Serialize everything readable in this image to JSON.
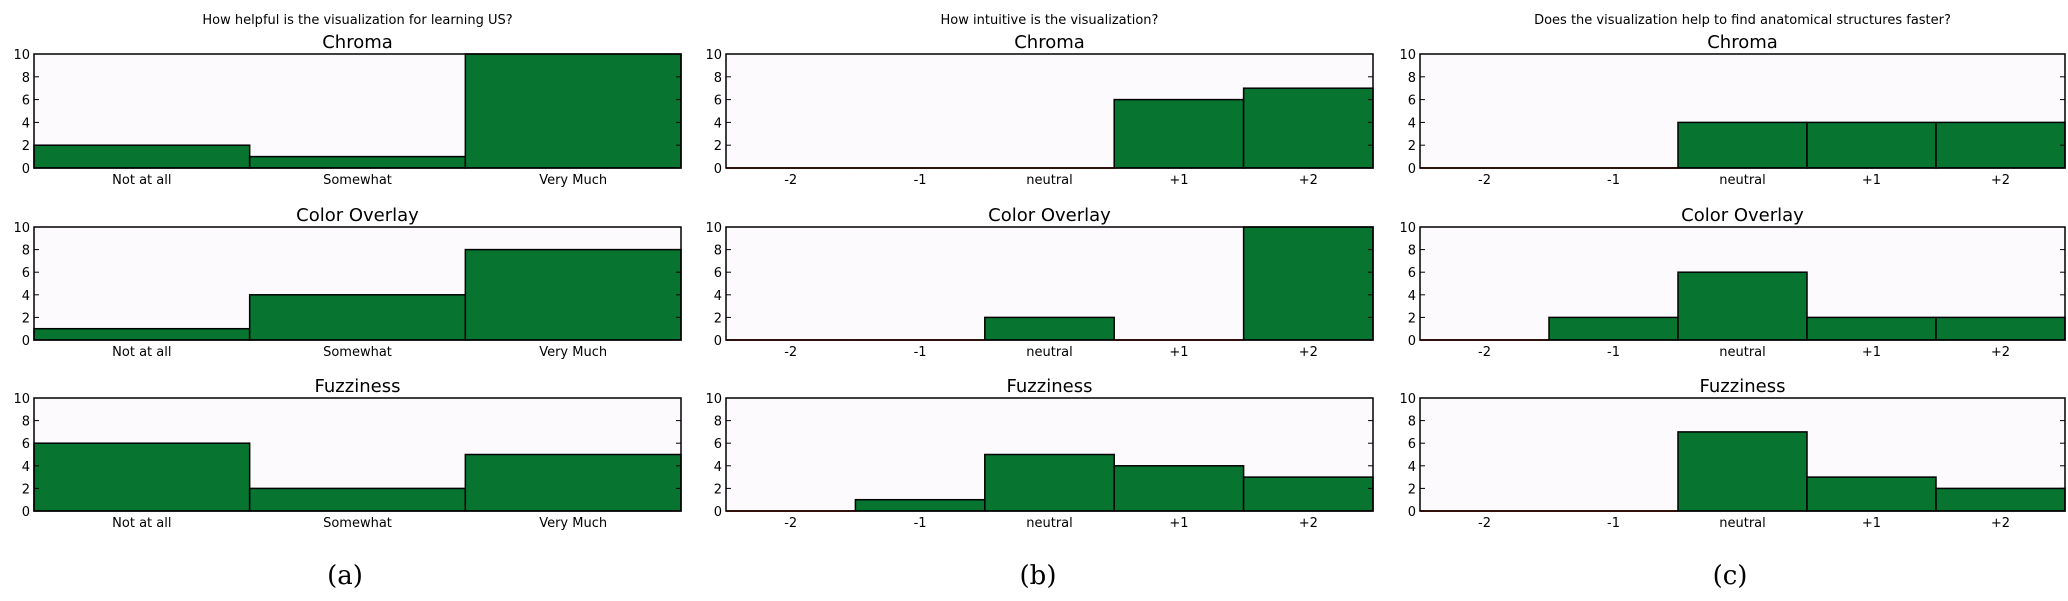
{
  "figure": {
    "captions": [
      "(a)",
      "(b)",
      "(c)"
    ],
    "colors": {
      "bar": "#077530",
      "plot_background": "#fdfafd",
      "edge": "#000000"
    }
  },
  "chart_data": [
    {
      "type": "bar",
      "panel_title": "How helpful is the visualization for learning US?",
      "title": "Chroma",
      "categories": [
        "Not at all",
        "Somewhat",
        "Very Much"
      ],
      "values": [
        2,
        1,
        10
      ],
      "ylim": [
        0,
        10
      ],
      "yticks": [
        "0",
        "2",
        "4",
        "6",
        "8",
        "10"
      ]
    },
    {
      "type": "bar",
      "panel_title": "",
      "title": "Color Overlay",
      "categories": [
        "Not at all",
        "Somewhat",
        "Very Much"
      ],
      "values": [
        1,
        4,
        8
      ],
      "ylim": [
        0,
        10
      ],
      "yticks": [
        "0",
        "2",
        "4",
        "6",
        "8",
        "10"
      ]
    },
    {
      "type": "bar",
      "panel_title": "",
      "title": "Fuzziness",
      "categories": [
        "Not at all",
        "Somewhat",
        "Very Much"
      ],
      "values": [
        6,
        2,
        5
      ],
      "ylim": [
        0,
        10
      ],
      "yticks": [
        "0",
        "2",
        "4",
        "6",
        "8",
        "10"
      ]
    },
    {
      "type": "bar",
      "panel_title": "How intuitive is the visualization?",
      "title": "Chroma",
      "categories": [
        "-2",
        "-1",
        "neutral",
        "+1",
        "+2"
      ],
      "values": [
        0,
        0,
        0,
        6,
        7
      ],
      "ylim": [
        0,
        10
      ],
      "yticks": [
        "0",
        "2",
        "4",
        "6",
        "8",
        "10"
      ]
    },
    {
      "type": "bar",
      "panel_title": "",
      "title": "Color Overlay",
      "categories": [
        "-2",
        "-1",
        "neutral",
        "+1",
        "+2"
      ],
      "values": [
        0,
        0,
        2,
        0,
        10
      ],
      "ylim": [
        0,
        10
      ],
      "yticks": [
        "0",
        "2",
        "4",
        "6",
        "8",
        "10"
      ]
    },
    {
      "type": "bar",
      "panel_title": "",
      "title": "Fuzziness",
      "categories": [
        "-2",
        "-1",
        "neutral",
        "+1",
        "+2"
      ],
      "values": [
        0,
        1,
        5,
        4,
        3
      ],
      "ylim": [
        0,
        10
      ],
      "yticks": [
        "0",
        "2",
        "4",
        "6",
        "8",
        "10"
      ]
    },
    {
      "type": "bar",
      "panel_title": "Does the visualization help to find anatomical structures faster?",
      "title": "Chroma",
      "categories": [
        "-2",
        "-1",
        "neutral",
        "+1",
        "+2"
      ],
      "values": [
        0,
        0,
        4,
        4,
        4
      ],
      "ylim": [
        0,
        10
      ],
      "yticks": [
        "0",
        "2",
        "4",
        "6",
        "8",
        "10"
      ]
    },
    {
      "type": "bar",
      "panel_title": "",
      "title": "Color Overlay",
      "categories": [
        "-2",
        "-1",
        "neutral",
        "+1",
        "+2"
      ],
      "values": [
        0,
        2,
        6,
        2,
        2
      ],
      "ylim": [
        0,
        10
      ],
      "yticks": [
        "0",
        "2",
        "4",
        "6",
        "8",
        "10"
      ]
    },
    {
      "type": "bar",
      "panel_title": "",
      "title": "Fuzziness",
      "categories": [
        "-2",
        "-1",
        "neutral",
        "+1",
        "+2"
      ],
      "values": [
        0,
        0,
        7,
        3,
        2
      ],
      "ylim": [
        0,
        10
      ],
      "yticks": [
        "0",
        "2",
        "4",
        "6",
        "8",
        "10"
      ]
    }
  ]
}
